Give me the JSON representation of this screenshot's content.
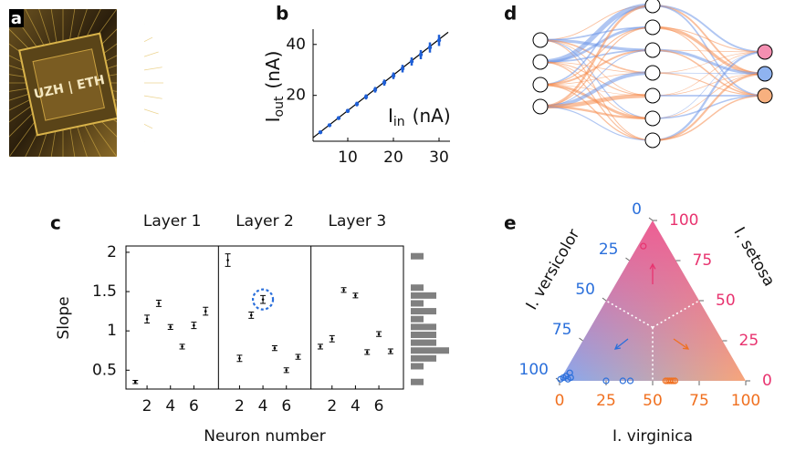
{
  "chart_data": [
    {
      "type": "image",
      "label": "a",
      "text": "UZH | ETH"
    },
    {
      "type": "scatter",
      "label": "b",
      "xlabel": [
        "I",
        "in",
        "(nA)"
      ],
      "ylabel": [
        "I",
        "out",
        "(nA)"
      ],
      "x": [
        4,
        6,
        8,
        10,
        12,
        14,
        16,
        18,
        20,
        22,
        24,
        26,
        28,
        30
      ],
      "values": [
        5.5,
        8.3,
        11.1,
        13.9,
        16.6,
        19.4,
        22.2,
        25,
        27.7,
        30.5,
        33.3,
        36,
        38.8,
        41.6
      ],
      "errors": [
        0.5,
        0.6,
        0.7,
        0.8,
        0.9,
        1,
        1.1,
        1.2,
        1.3,
        1.5,
        1.6,
        1.8,
        2,
        2.2
      ],
      "color": "#1f5fd6",
      "fit": {
        "x": [
          2.4,
          32
        ],
        "values": [
          3.4,
          44.8
        ],
        "color": "#000000"
      },
      "xlim": [
        2.4,
        32.4
      ],
      "ylim": [
        2,
        46
      ],
      "xticks": [
        10,
        20,
        30
      ],
      "yticks": [
        20,
        40
      ]
    },
    {
      "type": "errorbar",
      "label": "c",
      "ylabel": "Slope",
      "xlabel": "Neuron number",
      "x": [
        1,
        2,
        3,
        4,
        5,
        6,
        7
      ],
      "xlim": [
        0.2,
        8.1
      ],
      "ylim": [
        0.26,
        2.08
      ],
      "xticks": [
        2,
        4,
        6
      ],
      "yticks": [
        0.5,
        1,
        1.5,
        2
      ],
      "color": "#000000",
      "panels": [
        {
          "title": "Layer 1",
          "values": [
            0.35,
            1.15,
            1.35,
            1.05,
            0.8,
            1.07,
            1.25
          ],
          "errors": [
            0.02,
            0.05,
            0.04,
            0.03,
            0.03,
            0.04,
            0.05
          ]
        },
        {
          "title": "Layer 2",
          "values": [
            1.9,
            0.65,
            1.2,
            1.4,
            0.78,
            0.5,
            0.67
          ],
          "errors": [
            0.08,
            0.04,
            0.04,
            0.05,
            0.03,
            0.03,
            0.03
          ]
        },
        {
          "title": "Layer 3",
          "values": [
            0.8,
            0.9,
            1.52,
            1.45,
            0.73,
            0.96,
            0.74
          ],
          "errors": [
            0.03,
            0.04,
            0.03,
            0.03,
            0.03,
            0.03,
            0.03
          ]
        }
      ],
      "highlight": {
        "panel": 1,
        "index": 3,
        "color": "#2a6fdb"
      },
      "hist": {
        "bins": [
          0.3,
          0.4,
          0.5,
          0.6,
          0.7,
          0.8,
          0.9,
          1.0,
          1.1,
          1.2,
          1.3,
          1.4,
          1.5,
          1.6,
          1.7,
          1.8,
          1.9,
          2.0
        ],
        "counts": [
          1,
          0,
          1,
          2,
          3,
          2,
          2,
          2,
          1,
          2,
          1,
          2,
          1,
          0,
          0,
          0,
          1
        ],
        "color": "#808080"
      }
    },
    {
      "type": "network",
      "label": "d"
    },
    {
      "type": "ternary",
      "label": "e",
      "axes": {
        "bottom": {
          "title": "I. virginica",
          "color": "#f07020",
          "ticks": [
            0,
            25,
            50,
            75,
            100
          ]
        },
        "right": {
          "title": "I. setosa",
          "color": "#e8336f",
          "ticks": [
            0,
            25,
            50,
            75,
            100
          ]
        },
        "left": {
          "title": "I. versicolor",
          "color": "#2a6fdb",
          "ticks": [
            0,
            25,
            50,
            75,
            100
          ]
        }
      },
      "series": [
        {
          "color": "#e8336f",
          "bottom": [
            3
          ],
          "right": [
            84
          ],
          "left": [
            13
          ]
        },
        {
          "color": "#2a6fdb",
          "bottom": [
            1,
            2,
            3,
            4,
            5,
            25,
            34,
            38,
            0
          ],
          "right": [
            2,
            3,
            5,
            1,
            2,
            0,
            0,
            0,
            1
          ],
          "left": [
            97,
            95,
            92,
            95,
            93,
            75,
            66,
            62,
            99
          ]
        },
        {
          "color": "#f07020",
          "bottom": [
            57,
            58,
            59,
            60,
            61,
            62
          ],
          "right": [
            0,
            0,
            0,
            0,
            0,
            0
          ],
          "left": [
            43,
            42,
            41,
            40,
            39,
            38
          ]
        }
      ]
    }
  ]
}
